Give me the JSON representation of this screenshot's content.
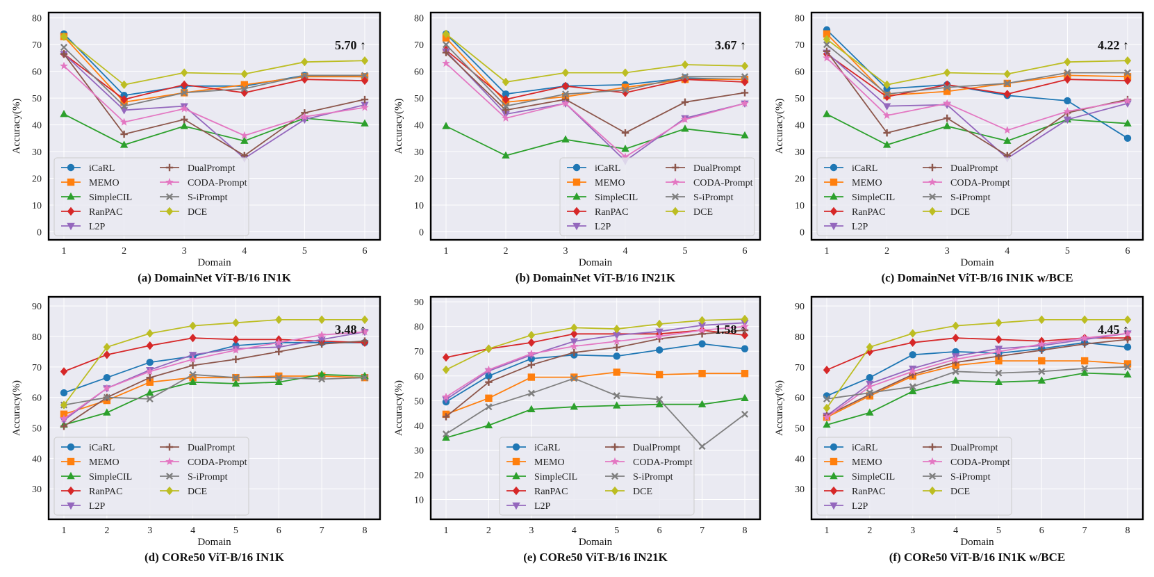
{
  "colors": {
    "iCaRL": "#1f77b4",
    "MEMO": "#ff7f0e",
    "SimpleCIL": "#2ca02c",
    "RanPAC": "#d62728",
    "L2P": "#9467bd",
    "DualPrompt": "#8c564b",
    "CODA-Prompt": "#e377c2",
    "S-iPrompt": "#7f7f7f",
    "DCE": "#bcbd22",
    "plot_bg": "#eaeaf2",
    "grid": "#ffffff",
    "frame": "#000000"
  },
  "markers": {
    "iCaRL": "circle",
    "MEMO": "square",
    "SimpleCIL": "triangle-up",
    "RanPAC": "diamond",
    "L2P": "triangle-down",
    "DualPrompt": "plus",
    "CODA-Prompt": "star",
    "S-iPrompt": "x",
    "DCE": "diamond"
  },
  "chart_data": [
    {
      "type": "line",
      "caption": "(a) DomainNet ViT-B/16 IN1K",
      "xlabel": "Domain",
      "ylabel": "Accuracy(%)",
      "x": [
        1,
        2,
        3,
        4,
        5,
        6
      ],
      "xticks": [
        "1",
        "2",
        "3",
        "4",
        "5",
        "6"
      ],
      "ylim": [
        -3,
        82
      ],
      "yticks": [
        "0",
        "10",
        "20",
        "30",
        "40",
        "50",
        "60",
        "70",
        "80"
      ],
      "annotation": "5.70 ↑",
      "legend": "lower-left",
      "series": [
        {
          "name": "iCaRL",
          "values": [
            74.0,
            51.0,
            54.5,
            54.5,
            58.5,
            58.0
          ]
        },
        {
          "name": "MEMO",
          "values": [
            73.0,
            48.5,
            52.0,
            55.0,
            58.0,
            58.0
          ]
        },
        {
          "name": "SimpleCIL",
          "values": [
            44.0,
            32.5,
            39.5,
            34.0,
            42.5,
            40.5
          ]
        },
        {
          "name": "RanPAC",
          "values": [
            66.5,
            49.5,
            55.0,
            52.0,
            57.0,
            56.5
          ]
        },
        {
          "name": "L2P",
          "values": [
            66.5,
            45.5,
            47.0,
            27.5,
            42.0,
            47.5
          ]
        },
        {
          "name": "DualPrompt",
          "values": [
            66.5,
            36.5,
            42.0,
            28.5,
            44.5,
            49.5
          ]
        },
        {
          "name": "CODA-Prompt",
          "values": [
            62.0,
            41.0,
            46.0,
            36.0,
            43.0,
            46.5
          ]
        },
        {
          "name": "S-iPrompt",
          "values": [
            69.0,
            47.0,
            52.0,
            53.5,
            58.5,
            58.5
          ]
        },
        {
          "name": "DCE",
          "values": [
            73.0,
            55.0,
            59.5,
            59.0,
            63.5,
            64.0
          ]
        }
      ]
    },
    {
      "type": "line",
      "caption": "(b) DomainNet ViT-B/16 IN21K",
      "xlabel": "Domain",
      "ylabel": "Accuracy(%)",
      "x": [
        1,
        2,
        3,
        4,
        5,
        6
      ],
      "xticks": [
        "1",
        "2",
        "3",
        "4",
        "5",
        "6"
      ],
      "ylim": [
        -3,
        82
      ],
      "yticks": [
        "0",
        "10",
        "20",
        "30",
        "40",
        "50",
        "60",
        "70",
        "80"
      ],
      "annotation": "3.67 ↑",
      "legend": "lower-right",
      "series": [
        {
          "name": "iCaRL",
          "values": [
            74.0,
            51.5,
            54.5,
            55.0,
            57.5,
            57.0
          ]
        },
        {
          "name": "MEMO",
          "values": [
            72.5,
            48.5,
            50.5,
            54.0,
            57.0,
            57.0
          ]
        },
        {
          "name": "SimpleCIL",
          "values": [
            39.5,
            28.5,
            34.5,
            31.0,
            38.5,
            36.0
          ]
        },
        {
          "name": "RanPAC",
          "values": [
            68.0,
            49.5,
            54.5,
            52.0,
            57.0,
            56.0
          ]
        },
        {
          "name": "L2P",
          "values": [
            67.5,
            44.0,
            48.0,
            26.5,
            42.5,
            48.0
          ]
        },
        {
          "name": "DualPrompt",
          "values": [
            67.0,
            45.5,
            49.5,
            37.0,
            48.5,
            52.0
          ]
        },
        {
          "name": "CODA-Prompt",
          "values": [
            63.0,
            42.5,
            48.0,
            28.0,
            42.0,
            48.0
          ]
        },
        {
          "name": "S-iPrompt",
          "values": [
            70.0,
            47.0,
            51.5,
            53.0,
            58.0,
            58.0
          ]
        },
        {
          "name": "DCE",
          "values": [
            74.0,
            56.0,
            59.5,
            59.5,
            62.5,
            62.0
          ]
        }
      ]
    },
    {
      "type": "line",
      "caption": "(c) DomainNet ViT-B/16 IN1K w/BCE",
      "xlabel": "Domain",
      "ylabel": "Accuracy(%)",
      "x": [
        1,
        2,
        3,
        4,
        5,
        6
      ],
      "xticks": [
        "1",
        "2",
        "3",
        "4",
        "5",
        "6"
      ],
      "ylim": [
        -3,
        82
      ],
      "yticks": [
        "0",
        "10",
        "20",
        "30",
        "40",
        "50",
        "60",
        "70",
        "80"
      ],
      "annotation": "4.22 ↑",
      "legend": "lower-left",
      "series": [
        {
          "name": "iCaRL",
          "values": [
            75.5,
            53.5,
            55.0,
            51.0,
            49.0,
            35.0
          ]
        },
        {
          "name": "MEMO",
          "values": [
            74.0,
            51.0,
            52.5,
            55.5,
            58.5,
            58.0
          ]
        },
        {
          "name": "SimpleCIL",
          "values": [
            44.0,
            32.5,
            39.5,
            34.0,
            42.0,
            40.5
          ]
        },
        {
          "name": "RanPAC",
          "values": [
            66.5,
            50.5,
            55.0,
            51.5,
            57.0,
            56.5
          ]
        },
        {
          "name": "L2P",
          "values": [
            67.0,
            47.0,
            47.5,
            27.5,
            42.0,
            48.0
          ]
        },
        {
          "name": "DualPrompt",
          "values": [
            67.5,
            37.0,
            42.5,
            28.5,
            44.5,
            49.5
          ]
        },
        {
          "name": "CODA-Prompt",
          "values": [
            65.0,
            43.5,
            48.0,
            38.0,
            45.0,
            49.0
          ]
        },
        {
          "name": "S-iPrompt",
          "values": [
            70.0,
            51.5,
            54.0,
            55.5,
            59.5,
            59.5
          ]
        },
        {
          "name": "DCE",
          "values": [
            72.0,
            55.0,
            59.5,
            59.0,
            63.5,
            64.0
          ]
        }
      ]
    },
    {
      "type": "line",
      "caption": "(d) CORe50 ViT-B/16 IN1K",
      "xlabel": "Domain",
      "ylabel": "Accuracy(%)",
      "x": [
        1,
        2,
        3,
        4,
        5,
        6,
        7,
        8
      ],
      "xticks": [
        "1",
        "2",
        "3",
        "4",
        "5",
        "6",
        "7",
        "8"
      ],
      "ylim": [
        20,
        93
      ],
      "yticks": [
        "30",
        "40",
        "50",
        "60",
        "70",
        "80",
        "90"
      ],
      "annotation": "3.48 ↑",
      "legend": "lower-left",
      "series": [
        {
          "name": "iCaRL",
          "values": [
            61.5,
            66.5,
            71.5,
            73.5,
            77.0,
            78.0,
            78.0,
            78.0
          ]
        },
        {
          "name": "MEMO",
          "values": [
            54.5,
            59.0,
            65.0,
            66.5,
            66.5,
            67.0,
            67.0,
            66.5
          ]
        },
        {
          "name": "SimpleCIL",
          "values": [
            51.0,
            55.0,
            61.5,
            65.0,
            64.5,
            65.0,
            67.5,
            67.0
          ]
        },
        {
          "name": "RanPAC",
          "values": [
            68.5,
            74.0,
            77.0,
            79.5,
            79.0,
            79.0,
            78.5,
            78.0
          ]
        },
        {
          "name": "L2P",
          "values": [
            52.5,
            63.0,
            69.0,
            74.0,
            76.0,
            76.5,
            79.0,
            81.5
          ]
        },
        {
          "name": "DualPrompt",
          "values": [
            50.5,
            60.0,
            66.5,
            70.5,
            72.5,
            75.0,
            77.5,
            78.5
          ]
        },
        {
          "name": "CODA-Prompt",
          "values": [
            53.0,
            63.0,
            68.5,
            72.5,
            75.5,
            78.0,
            80.5,
            81.5
          ]
        },
        {
          "name": "S-iPrompt",
          "values": [
            57.5,
            60.0,
            59.5,
            67.5,
            66.5,
            66.5,
            66.0,
            66.5
          ]
        },
        {
          "name": "DCE",
          "values": [
            57.5,
            76.5,
            81.0,
            83.5,
            84.5,
            85.5,
            85.5,
            85.5
          ]
        }
      ]
    },
    {
      "type": "line",
      "caption": "(e) CORe50 ViT-B/16 IN21K",
      "xlabel": "Domain",
      "ylabel": "Accuracy(%)",
      "x": [
        1,
        2,
        3,
        4,
        5,
        6,
        7,
        8
      ],
      "xticks": [
        "1",
        "2",
        "3",
        "4",
        "5",
        "6",
        "7",
        "8"
      ],
      "ylim": [
        2,
        92
      ],
      "yticks": [
        "10",
        "20",
        "30",
        "40",
        "50",
        "60",
        "70",
        "80",
        "90"
      ],
      "annotation": "1.58 ↑",
      "legend": "lower-center",
      "series": [
        {
          "name": "iCaRL",
          "values": [
            49.5,
            60.0,
            67.0,
            68.5,
            68.0,
            70.5,
            73.0,
            71.0
          ]
        },
        {
          "name": "MEMO",
          "values": [
            44.5,
            51.0,
            59.5,
            59.5,
            61.5,
            60.5,
            61.0,
            61.0
          ]
        },
        {
          "name": "SimpleCIL",
          "values": [
            35.0,
            40.0,
            46.5,
            47.5,
            48.0,
            48.5,
            48.5,
            51.0
          ]
        },
        {
          "name": "RanPAC",
          "values": [
            67.5,
            71.0,
            73.5,
            77.0,
            77.0,
            77.0,
            78.5,
            76.5
          ]
        },
        {
          "name": "L2P",
          "values": [
            50.5,
            62.0,
            68.5,
            74.0,
            76.5,
            78.0,
            80.5,
            81.5
          ]
        },
        {
          "name": "DualPrompt",
          "values": [
            43.5,
            57.5,
            64.5,
            69.5,
            71.5,
            75.0,
            77.0,
            78.5
          ]
        },
        {
          "name": "CODA-Prompt",
          "values": [
            51.5,
            62.5,
            69.0,
            72.0,
            74.0,
            76.0,
            78.5,
            80.0
          ]
        },
        {
          "name": "S-iPrompt",
          "values": [
            36.5,
            47.5,
            53.0,
            59.0,
            52.0,
            50.5,
            31.5,
            44.5
          ]
        },
        {
          "name": "DCE",
          "values": [
            62.5,
            71.0,
            76.5,
            79.5,
            79.0,
            81.0,
            82.5,
            83.0
          ]
        }
      ]
    },
    {
      "type": "line",
      "caption": "(f) CORe50 ViT-B/16 IN1K w/BCE",
      "xlabel": "Domain",
      "ylabel": "Accuracy(%)",
      "x": [
        1,
        2,
        3,
        4,
        5,
        6,
        7,
        8
      ],
      "xticks": [
        "1",
        "2",
        "3",
        "4",
        "5",
        "6",
        "7",
        "8"
      ],
      "ylim": [
        20,
        93
      ],
      "yticks": [
        "30",
        "40",
        "50",
        "60",
        "70",
        "80",
        "90"
      ],
      "annotation": "4.45 ↑",
      "legend": "lower-left",
      "series": [
        {
          "name": "iCaRL",
          "values": [
            60.5,
            66.5,
            74.0,
            75.0,
            74.5,
            76.0,
            78.0,
            76.5
          ]
        },
        {
          "name": "MEMO",
          "values": [
            53.5,
            60.5,
            67.0,
            70.5,
            72.0,
            72.0,
            72.0,
            71.0
          ]
        },
        {
          "name": "SimpleCIL",
          "values": [
            51.0,
            55.0,
            62.0,
            65.5,
            65.0,
            65.5,
            68.0,
            67.5
          ]
        },
        {
          "name": "RanPAC",
          "values": [
            69.0,
            75.0,
            78.0,
            79.5,
            79.0,
            78.5,
            79.5,
            79.5
          ]
        },
        {
          "name": "L2P",
          "values": [
            54.0,
            64.5,
            69.5,
            73.5,
            76.0,
            77.0,
            79.0,
            81.0
          ]
        },
        {
          "name": "DualPrompt",
          "values": [
            54.0,
            61.0,
            67.5,
            71.5,
            73.5,
            75.5,
            77.5,
            79.0
          ]
        },
        {
          "name": "CODA-Prompt",
          "values": [
            53.5,
            63.5,
            68.5,
            72.5,
            75.0,
            77.5,
            79.5,
            81.0
          ]
        },
        {
          "name": "S-iPrompt",
          "values": [
            59.5,
            61.5,
            63.5,
            68.5,
            68.0,
            68.5,
            69.5,
            70.0
          ]
        },
        {
          "name": "DCE",
          "values": [
            56.5,
            76.5,
            81.0,
            83.5,
            84.5,
            85.5,
            85.5,
            85.5
          ]
        }
      ]
    }
  ]
}
